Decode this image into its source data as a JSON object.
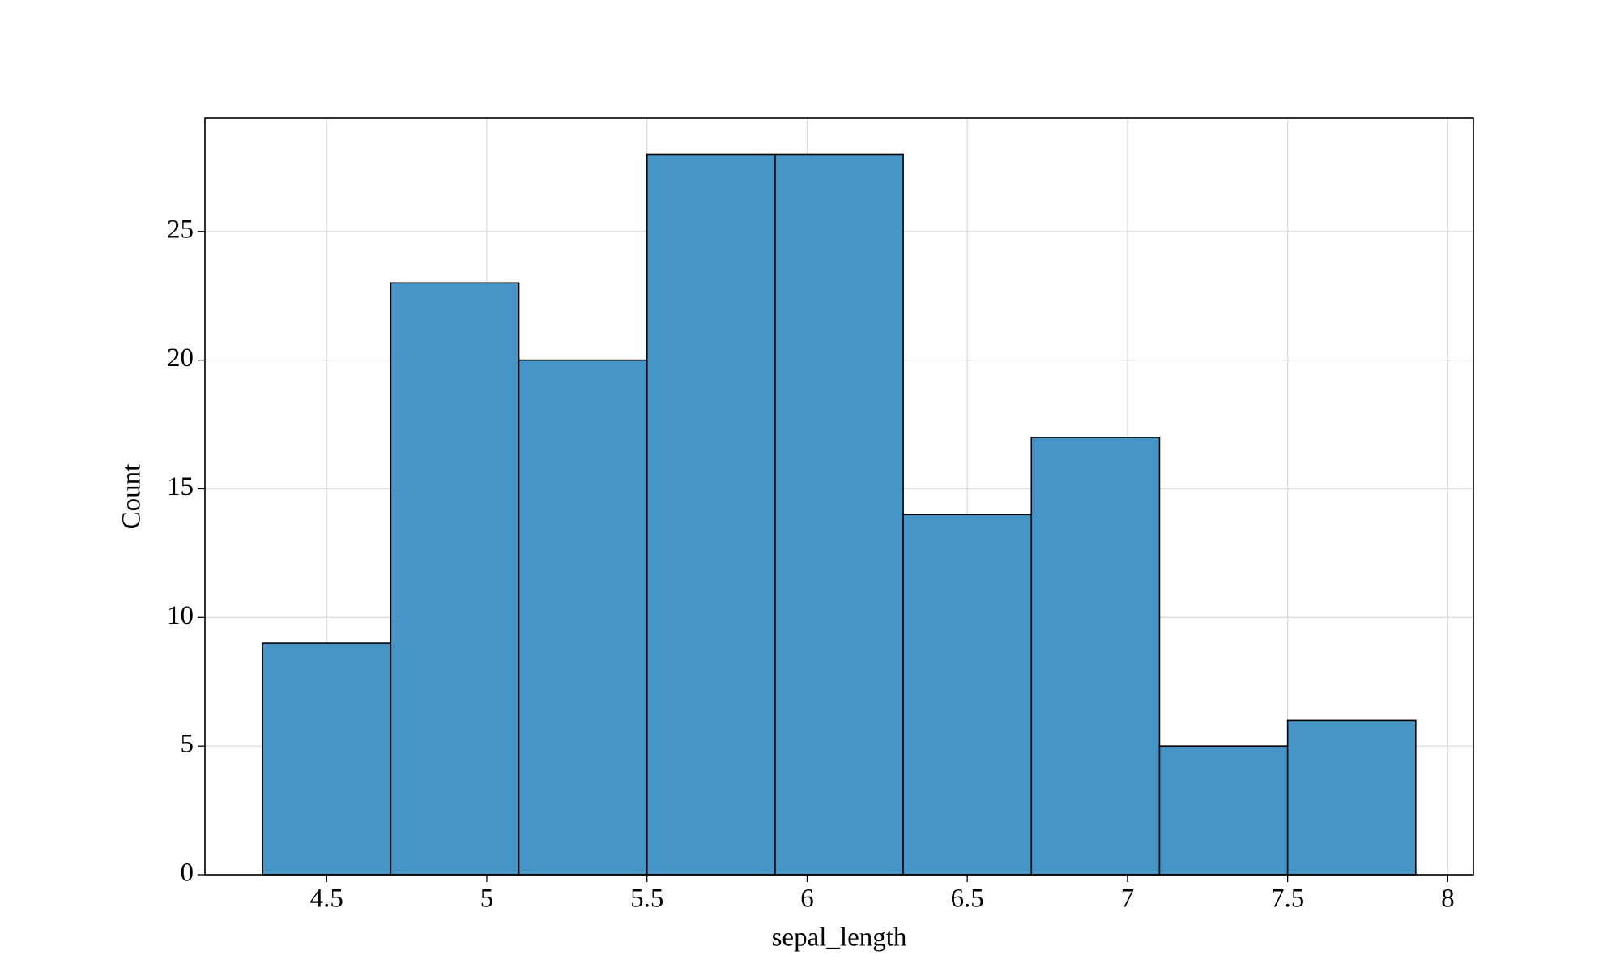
{
  "chart_data": {
    "type": "histogram",
    "xlabel": "sepal_length",
    "ylabel": "Count",
    "bins": [
      4.3,
      4.7,
      5.1,
      5.5,
      5.9,
      6.3,
      6.7,
      7.1,
      7.5,
      7.9
    ],
    "values": [
      9,
      23,
      20,
      28,
      28,
      14,
      17,
      5,
      6
    ],
    "color": "#4193c5",
    "xlim": [
      4.12,
      8.08
    ],
    "ylim": [
      0,
      29.4
    ],
    "xticks": [
      4.5,
      5,
      5.5,
      6,
      6.5,
      7,
      7.5,
      8
    ],
    "yticks": [
      0,
      5,
      10,
      15,
      20,
      25
    ],
    "grid": true
  }
}
